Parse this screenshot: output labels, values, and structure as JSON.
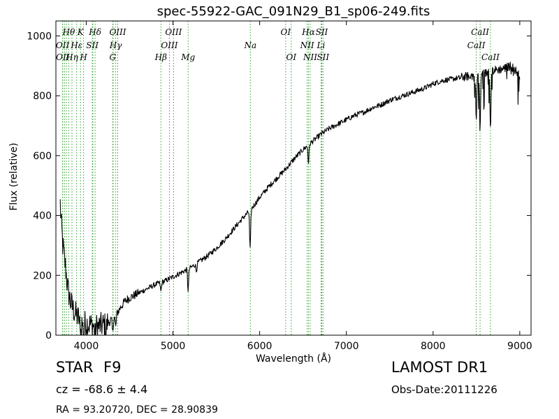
{
  "chart_data": {
    "type": "line",
    "title": "spec-55922-GAC_091N29_B1_sp06-249.fits",
    "xlabel": "Wavelength (Å)",
    "ylabel": "Flux (relative)",
    "xlim": [
      3650,
      9130
    ],
    "ylim": [
      0,
      1050
    ],
    "xticks": [
      4000,
      5000,
      6000,
      7000,
      8000,
      9000
    ],
    "yticks": [
      0,
      200,
      400,
      600,
      800,
      1000
    ],
    "grid": false,
    "line_color": "#000000",
    "marker_line_color": "#2ca02c",
    "spectrum_anchors": [
      [
        3700,
        440
      ],
      [
        3710,
        380
      ],
      [
        3730,
        300
      ],
      [
        3760,
        230
      ],
      [
        3790,
        150
      ],
      [
        3820,
        110
      ],
      [
        3860,
        80
      ],
      [
        3900,
        60
      ],
      [
        3950,
        45
      ],
      [
        4000,
        40
      ],
      [
        4050,
        35
      ],
      [
        4100,
        30
      ],
      [
        4150,
        30
      ],
      [
        4200,
        35
      ],
      [
        4250,
        40
      ],
      [
        4300,
        55
      ],
      [
        4350,
        70
      ],
      [
        4400,
        95
      ],
      [
        4450,
        115
      ],
      [
        4500,
        125
      ],
      [
        4600,
        140
      ],
      [
        4700,
        155
      ],
      [
        4800,
        170
      ],
      [
        4900,
        180
      ],
      [
        5000,
        195
      ],
      [
        5100,
        210
      ],
      [
        5200,
        225
      ],
      [
        5300,
        245
      ],
      [
        5400,
        265
      ],
      [
        5500,
        290
      ],
      [
        5600,
        320
      ],
      [
        5700,
        355
      ],
      [
        5800,
        390
      ],
      [
        5900,
        420
      ],
      [
        6000,
        460
      ],
      [
        6100,
        495
      ],
      [
        6200,
        525
      ],
      [
        6300,
        555
      ],
      [
        6400,
        590
      ],
      [
        6500,
        620
      ],
      [
        6600,
        645
      ],
      [
        6700,
        670
      ],
      [
        6800,
        690
      ],
      [
        6900,
        705
      ],
      [
        7000,
        720
      ],
      [
        7100,
        735
      ],
      [
        7200,
        745
      ],
      [
        7300,
        760
      ],
      [
        7400,
        770
      ],
      [
        7500,
        785
      ],
      [
        7600,
        795
      ],
      [
        7700,
        805
      ],
      [
        7800,
        815
      ],
      [
        7900,
        825
      ],
      [
        8000,
        840
      ],
      [
        8100,
        850
      ],
      [
        8200,
        855
      ],
      [
        8300,
        860
      ],
      [
        8400,
        865
      ],
      [
        8500,
        870
      ],
      [
        8600,
        875
      ],
      [
        8700,
        885
      ],
      [
        8800,
        890
      ],
      [
        8900,
        900
      ],
      [
        9000,
        870
      ]
    ],
    "absorption_dips": [
      [
        3934,
        60
      ],
      [
        3969,
        60
      ],
      [
        4101,
        40
      ],
      [
        4227,
        30
      ],
      [
        4305,
        50
      ],
      [
        4340,
        40
      ],
      [
        4861,
        30
      ],
      [
        5175,
        70
      ],
      [
        5270,
        25
      ],
      [
        5890,
        130
      ],
      [
        6563,
        60
      ],
      [
        8498,
        150
      ],
      [
        8542,
        190
      ],
      [
        8662,
        180
      ]
    ],
    "spectral_lines": [
      {
        "label": "Hθ",
        "x": 3798,
        "row": 1
      },
      {
        "label": "OII",
        "x": 3727,
        "row": 2
      },
      {
        "label": "OII",
        "x": 3729,
        "row": 3
      },
      {
        "label": "Hη",
        "x": 3835,
        "row": 3
      },
      {
        "label": "K",
        "x": 3934,
        "row": 1
      },
      {
        "label": "Hε",
        "x": 3889,
        "row": 2
      },
      {
        "label": "H",
        "x": 3969,
        "row": 3
      },
      {
        "label": "SII",
        "x": 4070,
        "row": 2
      },
      {
        "label": "Hδ",
        "x": 4102,
        "row": 1
      },
      {
        "label": "OIII",
        "x": 4363,
        "row": 1
      },
      {
        "label": "Hγ",
        "x": 4340,
        "row": 2
      },
      {
        "label": "G",
        "x": 4305,
        "row": 3
      },
      {
        "label": "OIII",
        "x": 5007,
        "row": 1
      },
      {
        "label": "OIII",
        "x": 4959,
        "row": 2
      },
      {
        "label": "Hβ",
        "x": 4861,
        "row": 3
      },
      {
        "label": "Mg",
        "x": 5175,
        "row": 3
      },
      {
        "label": "Na",
        "x": 5893,
        "row": 2
      },
      {
        "label": "OI",
        "x": 6300,
        "row": 1
      },
      {
        "label": "OI",
        "x": 6364,
        "row": 3
      },
      {
        "label": "Hα",
        "x": 6563,
        "row": 1
      },
      {
        "label": "SII",
        "x": 6716,
        "row": 1
      },
      {
        "label": "NII",
        "x": 6548,
        "row": 2
      },
      {
        "label": "Li",
        "x": 6708,
        "row": 2
      },
      {
        "label": "NII",
        "x": 6583,
        "row": 3
      },
      {
        "label": "SII",
        "x": 6731,
        "row": 3
      },
      {
        "label": "CaII",
        "x": 8542,
        "row": 1
      },
      {
        "label": "CaII",
        "x": 8498,
        "row": 2
      },
      {
        "label": "CaII",
        "x": 8662,
        "row": 3
      }
    ],
    "extra_marker_lines": [
      3750,
      3771,
      4076,
      4310,
      6717
    ]
  },
  "info": {
    "object_class": "STAR",
    "subclass": "F9",
    "redshift": "cz = -68.6 ± 4.4",
    "coords": "RA = 93.20720, DEC = 28.90839",
    "survey": "LAMOST DR1",
    "obs_date": "Obs-Date:20111226"
  }
}
